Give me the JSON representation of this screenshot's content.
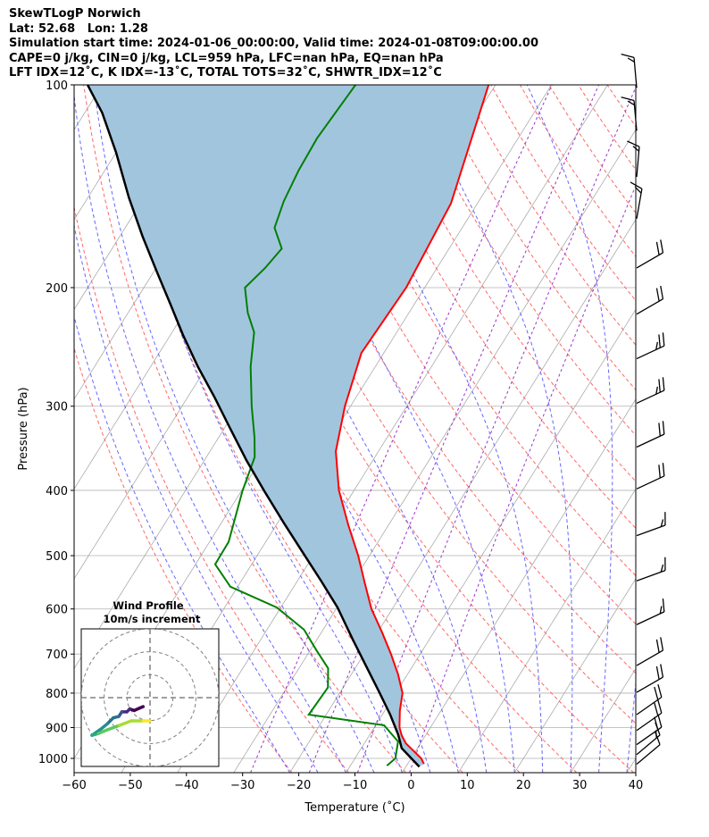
{
  "header": {
    "line1": "SkewTLogP Norwich",
    "line2": "Lat: 52.68   Lon: 1.28",
    "line3": "Simulation start time: 2024-01-06_00:00:00, Valid time: 2024-01-08T09:00:00.00",
    "line4": "CAPE=0 j/kg, CIN=0 j/kg, LCL=959 hPa, LFC=nan hPa, EQ=nan hPa",
    "line5": "LFT IDX=12˚C, K IDX=-13˚C, TOTAL TOTS=32˚C, SHWTR_IDX=12˚C"
  },
  "chart_data": {
    "type": "line",
    "subtype": "skew-T log-p",
    "xlabel": "Temperature (˚C)",
    "ylabel": "Pressure (hPa)",
    "xlim": [
      -60,
      40
    ],
    "ylim": [
      1050,
      100
    ],
    "grid": true,
    "xticks": [
      "−60",
      "−50",
      "−40",
      "−30",
      "−20",
      "−10",
      "0",
      "10",
      "20",
      "30",
      "40"
    ],
    "xtick_values": [
      -60,
      -50,
      -40,
      -30,
      -20,
      -10,
      0,
      10,
      20,
      30,
      40
    ],
    "yticks": [
      "100",
      "200",
      "300",
      "400",
      "500",
      "600",
      "700",
      "800",
      "900",
      "1000"
    ],
    "ytick_values": [
      100,
      200,
      300,
      400,
      500,
      600,
      700,
      800,
      900,
      1000
    ],
    "colors": {
      "temperature": "#ff0000",
      "dewpoint": "#008000",
      "parcel": "#000000",
      "shade": "#a2c5de",
      "isotherm": "#aaaaaa",
      "dry_adiabat": "#ff6666",
      "moist_adiabat": "#6666ff",
      "mixing": "#9933cc"
    },
    "series": [
      {
        "name": "temperature",
        "pressure": [
          1019,
          1000,
          950,
          925,
          900,
          850,
          800,
          750,
          700,
          650,
          600,
          550,
          500,
          450,
          400,
          350,
          300,
          250,
          200,
          150,
          100
        ],
        "values": [
          2.9,
          1.8,
          -2.6,
          -4.2,
          -5.5,
          -7.3,
          -8.8,
          -11.7,
          -15.2,
          -19.2,
          -23.7,
          -27.7,
          -32,
          -37.2,
          -42.7,
          -47.6,
          -51,
          -54,
          -53.3,
          -54.7,
          -61.2
        ]
      },
      {
        "name": "dewpoint",
        "pressure": [
          1025,
          1000,
          944,
          893,
          861,
          785,
          735,
          692,
          644,
          597,
          556,
          515,
          477,
          447,
          401,
          357,
          334,
          300,
          262,
          233,
          218,
          200,
          187,
          175,
          163,
          149,
          134,
          120,
          100
        ],
        "values": [
          -3.5,
          -2.8,
          -4.2,
          -8.5,
          -23.1,
          -22.7,
          -24.8,
          -28.8,
          -33.4,
          -40.7,
          -51.3,
          -56.5,
          -56.6,
          -57.8,
          -59.8,
          -61.4,
          -63.6,
          -67.6,
          -72.2,
          -75.4,
          -78.7,
          -82,
          -80.6,
          -79.8,
          -83.4,
          -84.7,
          -85.5,
          -85.8,
          -84.9
        ]
      },
      {
        "name": "parcel",
        "pressure": [
          1029,
          966,
          921,
          861,
          798,
          728,
          664,
          597,
          545,
          497,
          447,
          401,
          361,
          324,
          291,
          262,
          235,
          211,
          190,
          168,
          147,
          126,
          110,
          100
        ],
        "values": [
          2.4,
          -2.8,
          -5.0,
          -8.6,
          -13,
          -18.4,
          -23.8,
          -29.9,
          -35.8,
          -41.9,
          -48.9,
          -55.9,
          -62.5,
          -68.9,
          -75.2,
          -81.6,
          -87.8,
          -93.6,
          -99.3,
          -105.9,
          -112.7,
          -120,
          -126.9,
          -132.6
        ]
      }
    ],
    "wind_barbs": {
      "pressure": [
        101,
        117,
        137,
        158,
        187,
        219,
        255,
        297,
        345,
        398,
        467,
        545,
        633,
        728,
        798,
        861,
        909,
        954,
        987,
        1020
      ],
      "direction_deg": [
        355,
        355,
        5,
        10,
        60,
        60,
        65,
        65,
        65,
        65,
        70,
        70,
        65,
        60,
        60,
        55,
        55,
        55,
        50,
        50
      ],
      "speed_kt": [
        15,
        15,
        15,
        15,
        20,
        20,
        25,
        25,
        20,
        20,
        15,
        15,
        15,
        20,
        20,
        20,
        20,
        20,
        15,
        10
      ]
    },
    "hodograph": {
      "title": "Wind Profile",
      "subtitle": "10m/s increment",
      "ring_step_ms": 10,
      "u": [
        -3.0,
        -6.9,
        -8.8,
        -10.1,
        -12.3,
        -13.6,
        -16,
        -18.6,
        -21.8,
        -25.3,
        -22.5,
        -18.6,
        -13.4,
        -8.2,
        -3,
        -0.1
      ],
      "v": [
        -3.9,
        -5.6,
        -4.9,
        -6.2,
        -6.2,
        -8.2,
        -8.8,
        -11.4,
        -14,
        -16.4,
        -15.6,
        -14,
        -12.1,
        -10.1,
        -10.1,
        -10.1
      ]
    }
  }
}
